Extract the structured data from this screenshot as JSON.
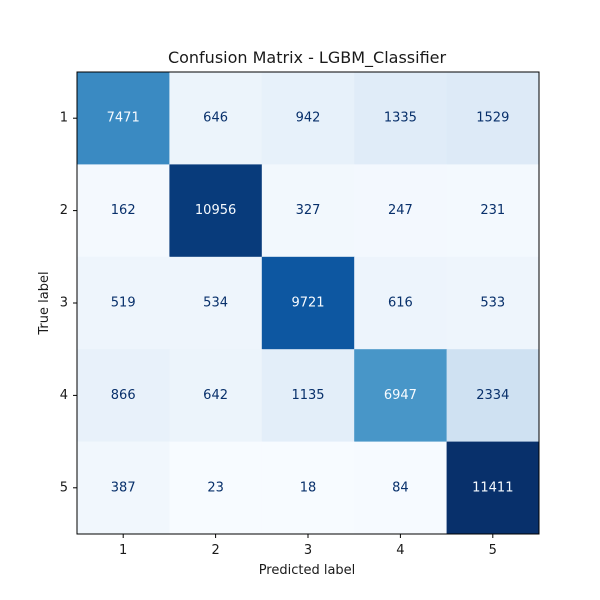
{
  "chart_data": {
    "type": "heatmap",
    "title": "Confusion Matrix - LGBM_Classifier",
    "xlabel": "Predicted label",
    "ylabel": "True label",
    "x_categories": [
      "1",
      "2",
      "3",
      "4",
      "5"
    ],
    "y_categories": [
      "1",
      "2",
      "3",
      "4",
      "5"
    ],
    "values": [
      [
        7471,
        646,
        942,
        1335,
        1529
      ],
      [
        162,
        10956,
        327,
        247,
        231
      ],
      [
        519,
        534,
        9721,
        616,
        533
      ],
      [
        866,
        642,
        1135,
        6947,
        2334
      ],
      [
        387,
        23,
        18,
        84,
        11411
      ]
    ],
    "colormap": "Blues",
    "value_range": [
      18,
      11411
    ],
    "colorbar": false,
    "grid": false
  }
}
